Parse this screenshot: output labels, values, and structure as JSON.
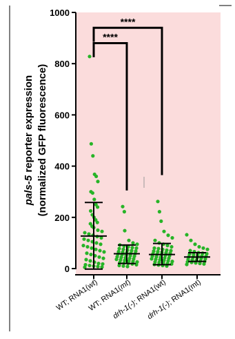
{
  "chart_data": {
    "type": "scatter",
    "ylabel_line1_italic": "pals-5",
    "ylabel_line1_rest": " reporter expression",
    "ylabel_line2": "(normalized GFP fluorescence)",
    "ylim": [
      0,
      1000
    ],
    "y_ticks": [
      "0",
      "200",
      "400",
      "600",
      "800",
      "1000"
    ],
    "categories": [
      {
        "prefix": "WT; RNA1(",
        "italic": "wt",
        "suffix": ")"
      },
      {
        "prefix": "WT; RNA1(",
        "italic": "mt",
        "suffix": ")"
      },
      {
        "prefix": "",
        "italic": "drh-1(-)",
        "suffix": "; RNA1(wt)"
      },
      {
        "prefix": "",
        "italic": "drh-1(-)",
        "suffix": "; RNA1(mt)"
      }
    ],
    "means": [
      127,
      58,
      55,
      45
    ],
    "sd_upper": [
      258,
      92,
      98,
      62
    ],
    "sd_lower": [
      -2,
      20,
      15,
      28
    ],
    "series": [
      {
        "values": [
          828,
          487,
          440,
          368,
          360,
          340,
          300,
          295,
          270,
          250,
          240,
          225,
          210,
          200,
          190,
          180,
          175,
          165,
          160,
          150,
          145,
          140,
          135,
          130,
          125,
          120,
          115,
          110,
          105,
          100,
          95,
          90,
          85,
          80,
          75,
          70,
          65,
          60,
          55,
          50,
          45,
          40,
          35,
          30,
          25,
          20,
          18,
          15,
          12,
          10,
          8,
          6,
          5
        ]
      },
      {
        "values": [
          242,
          222,
          148,
          110,
          100,
          95,
          92,
          88,
          85,
          82,
          80,
          78,
          75,
          72,
          70,
          68,
          66,
          64,
          62,
          60,
          58,
          56,
          54,
          52,
          50,
          48,
          46,
          44,
          42,
          40,
          38,
          36,
          34,
          32,
          30,
          28,
          26,
          24,
          22,
          20,
          18,
          15,
          12,
          10,
          8
        ]
      },
      {
        "values": [
          262,
          222,
          185,
          145,
          130,
          120,
          110,
          100,
          95,
          90,
          85,
          80,
          78,
          75,
          72,
          70,
          68,
          66,
          64,
          62,
          60,
          58,
          56,
          54,
          52,
          50,
          48,
          46,
          44,
          42,
          40,
          38,
          36,
          34,
          32,
          30,
          28,
          26,
          24,
          22,
          20,
          18,
          16,
          14,
          12,
          10
        ]
      },
      {
        "values": [
          132,
          110,
          95,
          85,
          80,
          75,
          70,
          66,
          62,
          60,
          58,
          56,
          54,
          52,
          50,
          48,
          46,
          44,
          42,
          40,
          38,
          36,
          34,
          32,
          30,
          28,
          26,
          24,
          22,
          20,
          18,
          16
        ]
      }
    ],
    "significance": [
      {
        "from": 0,
        "to": 1,
        "label": "****",
        "y": 880,
        "right_end": 305
      },
      {
        "from": 0,
        "to": 2,
        "label": "****",
        "y": 940,
        "right_end": 365
      }
    ],
    "grid": false,
    "legend": "none",
    "colors": {
      "background": "#fbdcdc",
      "points": "#27b427",
      "lines": "#000000"
    }
  }
}
